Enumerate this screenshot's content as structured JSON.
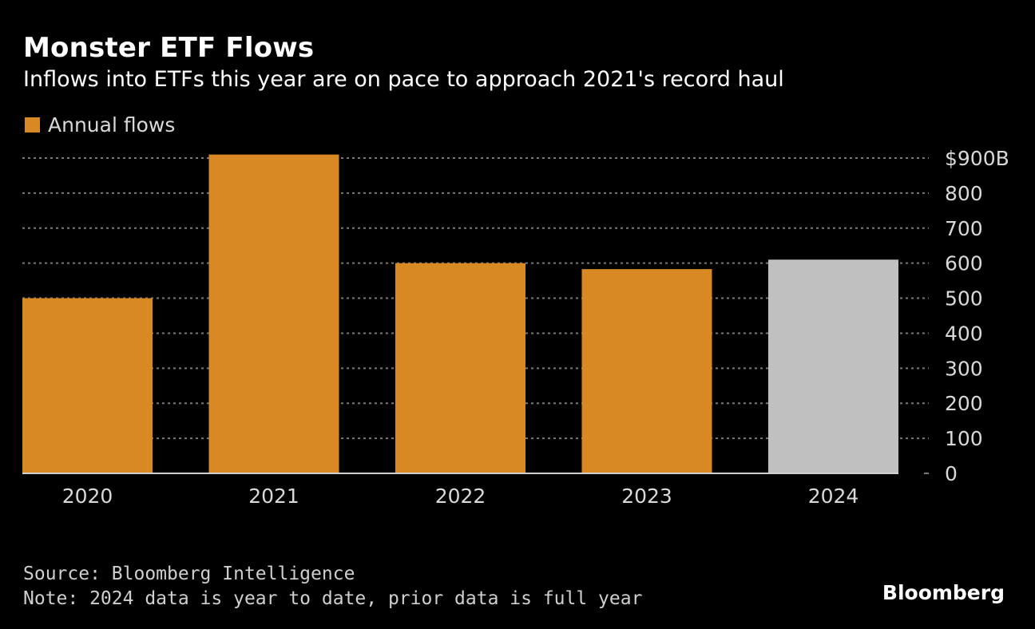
{
  "header": {
    "title": "Monster ETF Flows",
    "subtitle": "Inflows into ETFs this year are on pace to approach 2021's record haul"
  },
  "legend": {
    "label": "Annual flows",
    "color": "#d98923"
  },
  "footer": {
    "source": "Source: Bloomberg Intelligence",
    "note": "Note: 2024 data is year to date, prior data is full year",
    "brand": "Bloomberg"
  },
  "chart_data": {
    "type": "bar",
    "categories": [
      "2020",
      "2021",
      "2022",
      "2023",
      "2024"
    ],
    "series": [
      {
        "name": "Annual flows",
        "values": [
          500,
          910,
          600,
          583,
          610
        ]
      }
    ],
    "bar_colors": [
      "#d98923",
      "#d98923",
      "#d98923",
      "#d98923",
      "#c0c0c0"
    ],
    "ylim": [
      0,
      900
    ],
    "yticks": [
      0,
      100,
      200,
      300,
      400,
      500,
      600,
      700,
      800,
      900
    ],
    "ytick_labels": [
      "0",
      "100",
      "200",
      "300",
      "400",
      "500",
      "600",
      "700",
      "800",
      "$900B"
    ],
    "y_axis_position": "right",
    "grid": true,
    "legend_position": "top-left"
  }
}
